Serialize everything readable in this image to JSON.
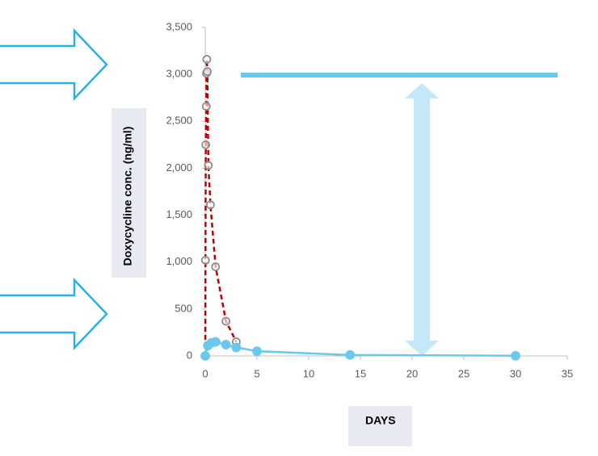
{
  "chart_data": {
    "type": "line",
    "y_label": "Doxycycline conc. (ng/ml)",
    "x_label": "DAYS",
    "xlim": [
      0,
      35
    ],
    "xticks": [
      0,
      5,
      10,
      15,
      20,
      25,
      30,
      35
    ],
    "ylim": [
      0,
      3500
    ],
    "yticks": [
      0,
      500,
      {
        "value": 1000,
        "label": "1,000"
      },
      {
        "value": 1500,
        "label": "1,500"
      },
      {
        "value": 2000,
        "label": "2,000"
      },
      {
        "value": 2500,
        "label": "2,500"
      },
      {
        "value": 3000,
        "label": "3,000"
      },
      {
        "value": 3500,
        "label": "3,500"
      }
    ],
    "grid": false,
    "series": [
      {
        "color": "#c00000",
        "marker_color": "#8c8c8c",
        "dashed": true,
        "marker_filled": false,
        "x": [
          0,
          0.02,
          0.05,
          0.1,
          0.12,
          0.15,
          0.2,
          0.3,
          0.5,
          1,
          2,
          3
        ],
        "values": [
          0,
          1020,
          2250,
          2660,
          3010,
          3160,
          3030,
          2030,
          1610,
          950,
          370,
          150
        ]
      },
      {
        "color": "#6cc7ee",
        "marker_color": "#6cc7ee",
        "dashed": false,
        "marker_filled": true,
        "x": [
          0,
          0.25,
          0.6,
          1,
          2,
          3,
          5,
          14,
          30
        ],
        "values": [
          0,
          110,
          140,
          150,
          120,
          90,
          50,
          10,
          2
        ]
      }
    ]
  }
}
